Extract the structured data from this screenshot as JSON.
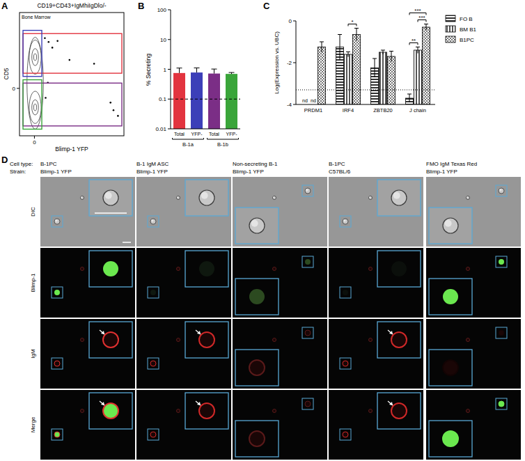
{
  "chart_data": [
    {
      "panel": "A",
      "type": "scatter",
      "title": "CD19+CD43+IgMhiIgDlo/-",
      "annotations": [
        "Bone Marrow"
      ],
      "x_label": "Blimp-1 YFP",
      "y_label": "CD5",
      "xlim": [
        -2,
        12
      ],
      "ylim": [
        -5,
        8
      ],
      "xticks": [
        0
      ],
      "yticks": [
        0
      ],
      "color": "#000000",
      "x": [
        1.4,
        1.9,
        2.4,
        3.1,
        4.7,
        8.0,
        10.2,
        10.6,
        11.2,
        1.5,
        1.8
      ],
      "y": [
        5.3,
        4.9,
        4.3,
        5.0,
        3.0,
        2.6,
        -1.5,
        -2.3,
        -2.9,
        -1.0,
        0.6
      ],
      "contours": [
        {
          "cx": 0.1,
          "cy": 0.55,
          "rx": 1.1,
          "ry": 4.85
        },
        {
          "cx": 0.1,
          "cy": 3.3,
          "rx": 0.8,
          "ry": 1.8
        },
        {
          "cx": 0.1,
          "cy": -2.0,
          "rx": 0.8,
          "ry": 1.7
        },
        {
          "cx": 0.1,
          "cy": 3.3,
          "rx": 0.45,
          "ry": 0.9
        },
        {
          "cx": 0.1,
          "cy": -2.0,
          "rx": 0.45,
          "ry": 0.8
        },
        {
          "cx": 0.1,
          "cy": 3.3,
          "rx": 0.2,
          "ry": 0.35
        },
        {
          "cx": 0.1,
          "cy": -2.0,
          "rx": 0.2,
          "ry": 0.35
        }
      ],
      "gates": [
        {
          "color": "#e2343f",
          "x": [
            -1.53,
            11.72
          ],
          "y": [
            1.6,
            5.78
          ]
        },
        {
          "color": "#3c3fb8",
          "x": [
            -1.53,
            0.99
          ],
          "y": [
            1.26,
            6.12
          ]
        },
        {
          "color": "#7b2e86",
          "x": [
            -1.53,
            11.72
          ],
          "y": [
            -3.96,
            0.56
          ]
        },
        {
          "color": "#3aa53a",
          "x": [
            -1.53,
            0.99
          ],
          "y": [
            -4.3,
            0.91
          ]
        }
      ]
    },
    {
      "panel": "B",
      "type": "bar",
      "y_label": "% Secreting",
      "categories": [
        "Total",
        "YFP-",
        "Total",
        "YFP-"
      ],
      "values": [
        0.75,
        0.78,
        0.72,
        0.7
      ],
      "errors": [
        0.35,
        0.33,
        0.3,
        0.08
      ],
      "colors": [
        "#e2343f",
        "#3c3fb8",
        "#7b2e86",
        "#3aa53a"
      ],
      "log": "y",
      "ylim": [
        0.01,
        100
      ],
      "yticks": [
        0.01,
        0.1,
        1,
        10,
        100
      ],
      "reference_line": 0.1,
      "groups": [
        {
          "label": "B-1a",
          "from": 0,
          "to": 1
        },
        {
          "label": "B-1b",
          "from": 2,
          "to": 3
        }
      ]
    },
    {
      "panel": "C",
      "type": "bar",
      "y_label": "Log(Expression vs. UBC)",
      "categories": [
        "PRDM1",
        "IRF4",
        "ZBTB20",
        "J chain"
      ],
      "ylim": [
        -4,
        0
      ],
      "yticks": [
        -4,
        -2,
        0
      ],
      "legend": "top-right",
      "reference_line": -3.3,
      "series": [
        {
          "name": "FO B",
          "color": "#333333",
          "values": [
            null,
            -1.25,
            -2.25,
            -3.7
          ],
          "errors": [
            null,
            0.6,
            0.45,
            0.2
          ],
          "value_labels": [
            "nd",
            null,
            null,
            null
          ]
        },
        {
          "name": "BM B1",
          "color": "#555555",
          "values": [
            null,
            -1.6,
            -1.5,
            -1.4
          ],
          "errors": [
            null,
            0.12,
            0.1,
            0.15
          ],
          "value_labels": [
            "nd",
            null,
            null,
            null
          ]
        },
        {
          "name": "B1PC",
          "color": "#777777",
          "values": [
            -1.25,
            -0.65,
            -1.7,
            -0.3
          ],
          "errors": [
            0.25,
            0.3,
            0.25,
            0.15
          ]
        }
      ],
      "significance": [
        {
          "category": 1,
          "from": 1,
          "to": 2,
          "label": "*"
        },
        {
          "category": 3,
          "from": 0,
          "to": 1,
          "label": "**"
        },
        {
          "category": 3,
          "from": 1,
          "to": 2,
          "label": "***"
        },
        {
          "category": 3,
          "from": 0,
          "to": 2,
          "label": "***"
        }
      ]
    }
  ],
  "image_grid": {
    "panel": "D",
    "header_labels": [
      "Cell type:",
      "Strain:"
    ],
    "columns": [
      {
        "cell_type": "B-1PC",
        "strain": "Blimp-1 YFP"
      },
      {
        "cell_type": "B-1 IgM ASC",
        "strain": "Blimp-1 YFP"
      },
      {
        "cell_type": "Non-secreting B-1",
        "strain": "Blimp-1 YFP"
      },
      {
        "cell_type": "B-1PC",
        "strain": "C57BL/6"
      },
      {
        "cell_type": "FMO IgM Texas Red",
        "strain": "Blimp-1 YFP"
      }
    ],
    "rows": [
      "DIC",
      "Blimp-1",
      "IgM",
      "Merge"
    ]
  }
}
